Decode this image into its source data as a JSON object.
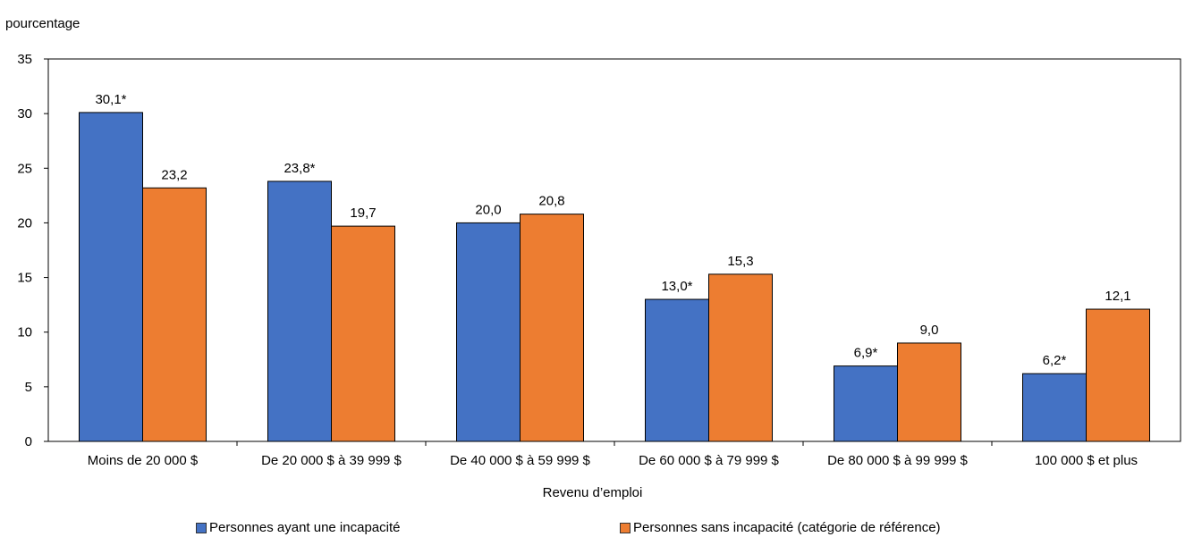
{
  "chart_data": {
    "type": "bar",
    "ylabel": "pourcentage",
    "xlabel": "Revenu d’emploi",
    "ylim": [
      0,
      35
    ],
    "yticks": [
      0,
      5,
      10,
      15,
      20,
      25,
      30,
      35
    ],
    "grid": false,
    "legend_position": "bottom",
    "categories": [
      "Moins de 20 000 $",
      "De 20 000 $ à 39 999 $",
      "De 40 000 $ à 59 999 $",
      "De 60 000 $ à 79 999 $",
      "De 80 000 $ à 99 999 $",
      "100 000 $ et plus"
    ],
    "series": [
      {
        "name": "Personnes ayant une incapacité",
        "color": "#4472C4",
        "values": [
          30.1,
          23.8,
          20.0,
          13.0,
          6.9,
          6.2
        ],
        "labels": [
          "30,1*",
          "23,8*",
          "20,0",
          "13,0*",
          "6,9*",
          "6,2*"
        ]
      },
      {
        "name": "Personnes sans incapacité (catégorie de référence)",
        "color": "#ED7D31",
        "values": [
          23.2,
          19.7,
          20.8,
          15.3,
          9.0,
          12.1
        ],
        "labels": [
          "23,2",
          "19,7",
          "20,8",
          "15,3",
          "9,0",
          "12,1"
        ]
      }
    ]
  }
}
